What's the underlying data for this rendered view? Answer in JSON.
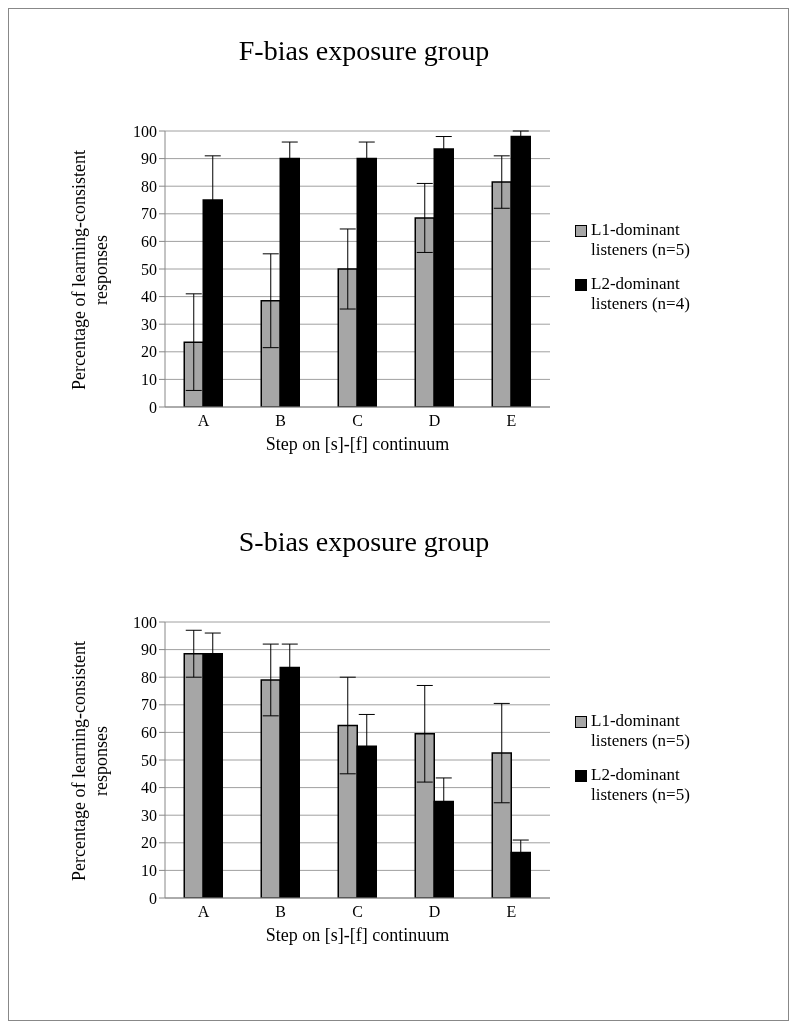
{
  "chart_data": [
    {
      "type": "bar",
      "title": "F-bias exposure group",
      "xlabel": "Step on [s]-[f] continuum",
      "ylabel": "Percentage of learning-consistent responses",
      "categories": [
        "A",
        "B",
        "C",
        "D",
        "E"
      ],
      "series": [
        {
          "name": "L1-dominant listeners (n=5)",
          "color": "#a6a6a6",
          "values": [
            23.5,
            38.5,
            50,
            68.5,
            81.5
          ],
          "errors": [
            17.5,
            17,
            14.5,
            12.5,
            9.5
          ]
        },
        {
          "name": "L2-dominant listeners (n=4)",
          "color": "#000000",
          "values": [
            75,
            90,
            90,
            93.5,
            98
          ],
          "errors": [
            16,
            6,
            6,
            4.5,
            2
          ]
        }
      ],
      "ylim": [
        0,
        100
      ],
      "yticks": [
        0,
        10,
        20,
        30,
        40,
        50,
        60,
        70,
        80,
        90,
        100
      ],
      "grid": "y",
      "legend": "right"
    },
    {
      "type": "bar",
      "title": "S-bias exposure group",
      "xlabel": "Step on [s]-[f] continuum",
      "ylabel": "Percentage of learning-consistent responses",
      "categories": [
        "A",
        "B",
        "C",
        "D",
        "E"
      ],
      "series": [
        {
          "name": "L1-dominant listeners (n=5)",
          "color": "#a6a6a6",
          "values": [
            88.5,
            79,
            62.5,
            59.5,
            52.5
          ],
          "errors": [
            8.5,
            13,
            17.5,
            17.5,
            18
          ]
        },
        {
          "name": "L2-dominant listeners (n=5)",
          "color": "#000000",
          "values": [
            88.5,
            83.5,
            55,
            35,
            16.5
          ],
          "errors": [
            7.5,
            8.5,
            11.5,
            8.5,
            4.5
          ]
        }
      ],
      "ylim": [
        0,
        100
      ],
      "yticks": [
        0,
        10,
        20,
        30,
        40,
        50,
        60,
        70,
        80,
        90,
        100
      ],
      "grid": "y",
      "legend": "right"
    }
  ]
}
